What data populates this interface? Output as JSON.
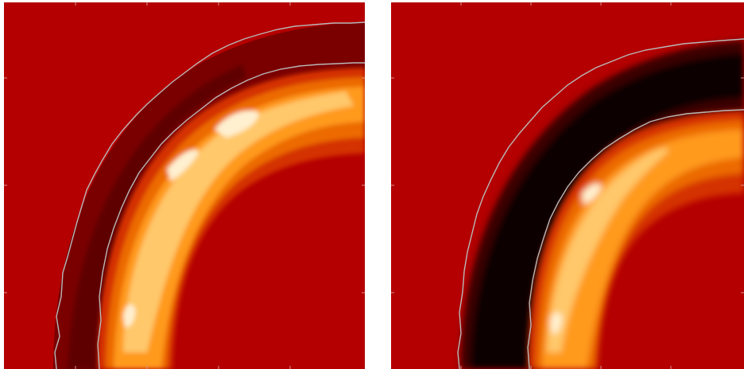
{
  "panels": [
    {
      "id": "left",
      "inner_band": "dark-red",
      "colors": {
        "background": "#b40000",
        "outer_band": "#7a0000",
        "outer_band_dark": "#5e0000",
        "ring_1": "#d43000",
        "ring_2": "#ec6a00",
        "ring_3": "#ff9a1a",
        "ring_4": "#ffc86a",
        "ring_5": "#fff0d0",
        "contour": "#b8b8b8"
      }
    },
    {
      "id": "right",
      "inner_band": "black",
      "colors": {
        "background": "#b40000",
        "outer_band": "#0a0000",
        "outer_band_edge": "#3a0000",
        "ring_1": "#d43000",
        "ring_2": "#ec6a00",
        "ring_3": "#ff9a1a",
        "ring_4": "#ffc86a",
        "ring_5": "#fff0d0",
        "contour": "#b8b8b8"
      }
    }
  ]
}
